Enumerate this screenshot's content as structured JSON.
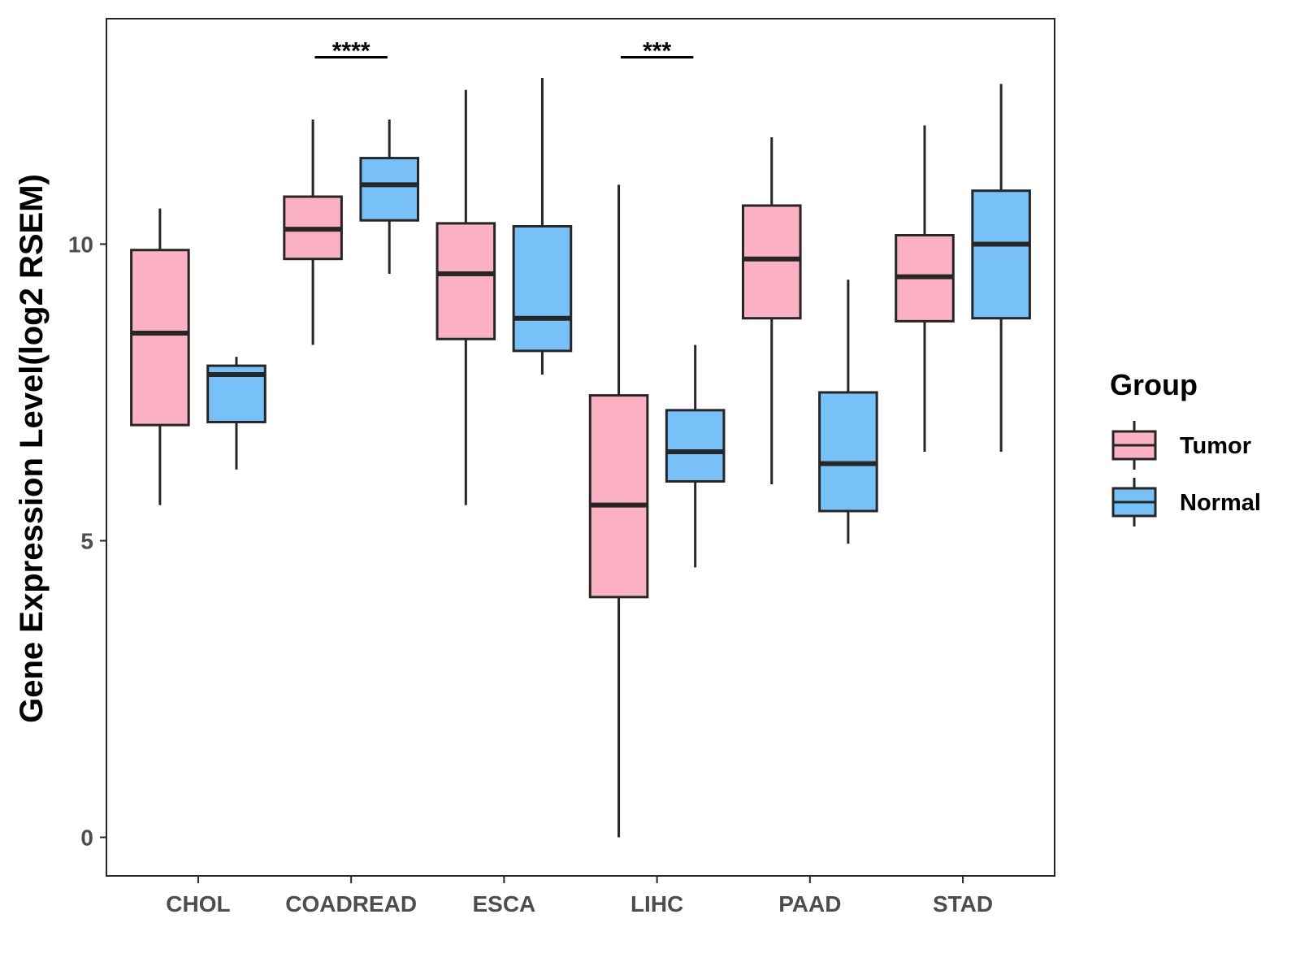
{
  "chart_data": {
    "type": "boxplot",
    "ylabel": "Gene Expression Level(log2 RSEM)",
    "xlabel": "",
    "ylim": [
      -0.65,
      13.8
    ],
    "yticks": [
      0,
      5,
      10
    ],
    "categories": [
      "CHOL",
      "COADREAD",
      "ESCA",
      "LIHC",
      "PAAD",
      "STAD"
    ],
    "groups": [
      "Tumor",
      "Normal"
    ],
    "colors": {
      "Tumor": "#FBB1C3",
      "Normal": "#78C1F8",
      "stroke": "#262626"
    },
    "boxes": [
      {
        "category": "CHOL",
        "group": "Tumor",
        "min": 5.6,
        "q1": 6.95,
        "median": 8.5,
        "q3": 9.9,
        "max": 10.6
      },
      {
        "category": "CHOL",
        "group": "Normal",
        "min": 6.2,
        "q1": 7.0,
        "median": 7.8,
        "q3": 7.95,
        "max": 8.1
      },
      {
        "category": "COADREAD",
        "group": "Tumor",
        "min": 8.3,
        "q1": 9.75,
        "median": 10.25,
        "q3": 10.8,
        "max": 12.1
      },
      {
        "category": "COADREAD",
        "group": "Normal",
        "min": 9.5,
        "q1": 10.4,
        "median": 11.0,
        "q3": 11.45,
        "max": 12.1
      },
      {
        "category": "ESCA",
        "group": "Tumor",
        "min": 5.6,
        "q1": 8.4,
        "median": 9.5,
        "q3": 10.35,
        "max": 12.6
      },
      {
        "category": "ESCA",
        "group": "Normal",
        "min": 7.8,
        "q1": 8.2,
        "median": 8.75,
        "q3": 10.3,
        "max": 12.8
      },
      {
        "category": "LIHC",
        "group": "Tumor",
        "min": 0.0,
        "q1": 4.05,
        "median": 5.6,
        "q3": 7.45,
        "max": 11.0
      },
      {
        "category": "LIHC",
        "group": "Normal",
        "min": 4.55,
        "q1": 6.0,
        "median": 6.5,
        "q3": 7.2,
        "max": 8.3
      },
      {
        "category": "PAAD",
        "group": "Tumor",
        "min": 5.95,
        "q1": 8.75,
        "median": 9.75,
        "q3": 10.65,
        "max": 11.8
      },
      {
        "category": "PAAD",
        "group": "Normal",
        "min": 4.95,
        "q1": 5.5,
        "median": 6.3,
        "q3": 7.5,
        "max": 9.4
      },
      {
        "category": "STAD",
        "group": "Tumor",
        "min": 6.5,
        "q1": 8.7,
        "median": 9.45,
        "q3": 10.15,
        "max": 12.0
      },
      {
        "category": "STAD",
        "group": "Normal",
        "min": 6.5,
        "q1": 8.75,
        "median": 10.0,
        "q3": 10.9,
        "max": 12.7
      }
    ],
    "significance": [
      {
        "category": "COADREAD",
        "label": "****",
        "y": 13.15
      },
      {
        "category": "LIHC",
        "label": "***",
        "y": 13.15
      }
    ],
    "legend": {
      "title": "Group",
      "items": [
        "Tumor",
        "Normal"
      ],
      "position": "right"
    },
    "grid": false
  }
}
